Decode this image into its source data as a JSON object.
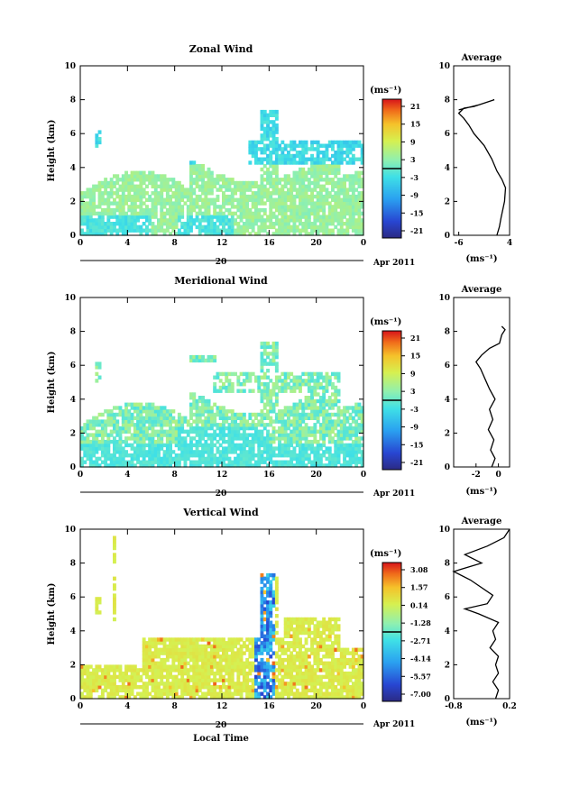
{
  "chart_data": [
    {
      "type": "heatmap",
      "title": "Zonal Wind",
      "ylabel": "Height (km)",
      "xlabel": "",
      "x_ticks": [
        "0",
        "4",
        "8",
        "12",
        "16",
        "20",
        "0"
      ],
      "y_ticks": [
        "0",
        "2",
        "4",
        "6",
        "8",
        "10"
      ],
      "ylim": [
        0,
        10
      ],
      "xlim": [
        0,
        24
      ],
      "date_day": "20",
      "date_label": "Apr 2011",
      "colorbar": {
        "unit": "(ms⁻¹)",
        "ticks": [
          "21",
          "15",
          "9",
          "3",
          "-3",
          "-9",
          "-15",
          "-21"
        ],
        "range": [
          -24,
          24
        ]
      },
      "profile": {
        "title": "Average",
        "xlabel": "(ms⁻¹)",
        "x_ticks": [
          "-6",
          "4"
        ],
        "y_ticks": [
          "0",
          "2",
          "4",
          "6",
          "8",
          "10"
        ],
        "xlim": [
          -7,
          4
        ],
        "points": [
          [
            1.5,
            0
          ],
          [
            2,
            0.5
          ],
          [
            2.3,
            1
          ],
          [
            3,
            2
          ],
          [
            3.2,
            2.8
          ],
          [
            2.5,
            3.3
          ],
          [
            1.5,
            3.8
          ],
          [
            0.5,
            4.5
          ],
          [
            -1,
            5.3
          ],
          [
            -3,
            6
          ],
          [
            -4,
            6.5
          ],
          [
            -5,
            6.9
          ],
          [
            -6,
            7.2
          ],
          [
            -5,
            7.5
          ],
          [
            -3,
            7.6
          ],
          [
            -1,
            7.8
          ],
          [
            1,
            8
          ],
          [
            -2,
            7.7
          ],
          [
            -6,
            7.4
          ]
        ]
      }
    },
    {
      "type": "heatmap",
      "title": "Meridional Wind",
      "ylabel": "Height (km)",
      "xlabel": "",
      "x_ticks": [
        "0",
        "4",
        "8",
        "12",
        "16",
        "20",
        "0"
      ],
      "y_ticks": [
        "0",
        "2",
        "4",
        "6",
        "8",
        "10"
      ],
      "ylim": [
        0,
        10
      ],
      "xlim": [
        0,
        24
      ],
      "date_day": "20",
      "date_label": "Apr 2011",
      "colorbar": {
        "unit": "(ms⁻¹)",
        "ticks": [
          "21",
          "15",
          "9",
          "3",
          "-3",
          "-9",
          "-15",
          "-21"
        ],
        "range": [
          -24,
          24
        ]
      },
      "profile": {
        "title": "Average",
        "xlabel": "(ms⁻¹)",
        "x_ticks": [
          "-2",
          "0"
        ],
        "y_ticks": [
          "0",
          "2",
          "4",
          "6",
          "8",
          "10"
        ],
        "xlim": [
          -4,
          1
        ],
        "points": [
          [
            -0.6,
            0
          ],
          [
            -0.3,
            0.5
          ],
          [
            -0.7,
            1
          ],
          [
            -0.4,
            1.6
          ],
          [
            -0.9,
            2.2
          ],
          [
            -0.5,
            2.8
          ],
          [
            -0.8,
            3.4
          ],
          [
            -0.3,
            4
          ],
          [
            -0.8,
            4.6
          ],
          [
            -1.2,
            5.2
          ],
          [
            -1.6,
            5.8
          ],
          [
            -2,
            6.2
          ],
          [
            -1.5,
            6.6
          ],
          [
            -0.8,
            7
          ],
          [
            0.1,
            7.3
          ],
          [
            0.3,
            7.8
          ],
          [
            0.6,
            8.1
          ],
          [
            0.3,
            8.3
          ]
        ]
      }
    },
    {
      "type": "heatmap",
      "title": "Vertical Wind",
      "ylabel": "Height (km)",
      "xlabel": "Local Time",
      "x_ticks": [
        "0",
        "4",
        "8",
        "12",
        "16",
        "20",
        "0"
      ],
      "y_ticks": [
        "0",
        "2",
        "4",
        "6",
        "8",
        "10"
      ],
      "ylim": [
        0,
        10
      ],
      "xlim": [
        0,
        24
      ],
      "date_day": "20",
      "date_label": "Apr 2011",
      "colorbar": {
        "unit": "(ms⁻¹)",
        "ticks": [
          "3.08",
          "1.57",
          "0.14",
          "-1.28",
          "-2.71",
          "-4.14",
          "-5.57",
          "-7.00"
        ],
        "range": [
          -7.7,
          3.8
        ]
      },
      "profile": {
        "title": "Average",
        "xlabel": "(ms⁻¹)",
        "x_ticks": [
          "-0.8",
          "0.2"
        ],
        "y_ticks": [
          "0",
          "2",
          "4",
          "6",
          "8",
          "10"
        ],
        "xlim": [
          -0.8,
          0.2
        ],
        "points": [
          [
            -0.05,
            0
          ],
          [
            0,
            0.5
          ],
          [
            -0.1,
            1
          ],
          [
            0,
            1.5
          ],
          [
            -0.05,
            2
          ],
          [
            0,
            2.5
          ],
          [
            -0.15,
            3
          ],
          [
            -0.05,
            3.5
          ],
          [
            -0.1,
            4
          ],
          [
            0,
            4.5
          ],
          [
            -0.35,
            5
          ],
          [
            -0.6,
            5.3
          ],
          [
            -0.2,
            5.6
          ],
          [
            -0.1,
            6.1
          ],
          [
            -0.5,
            7
          ],
          [
            -0.8,
            7.5
          ],
          [
            -0.3,
            8
          ],
          [
            -0.6,
            8.5
          ],
          [
            -0.2,
            9
          ],
          [
            0.1,
            9.5
          ],
          [
            0.2,
            10
          ]
        ]
      }
    }
  ]
}
